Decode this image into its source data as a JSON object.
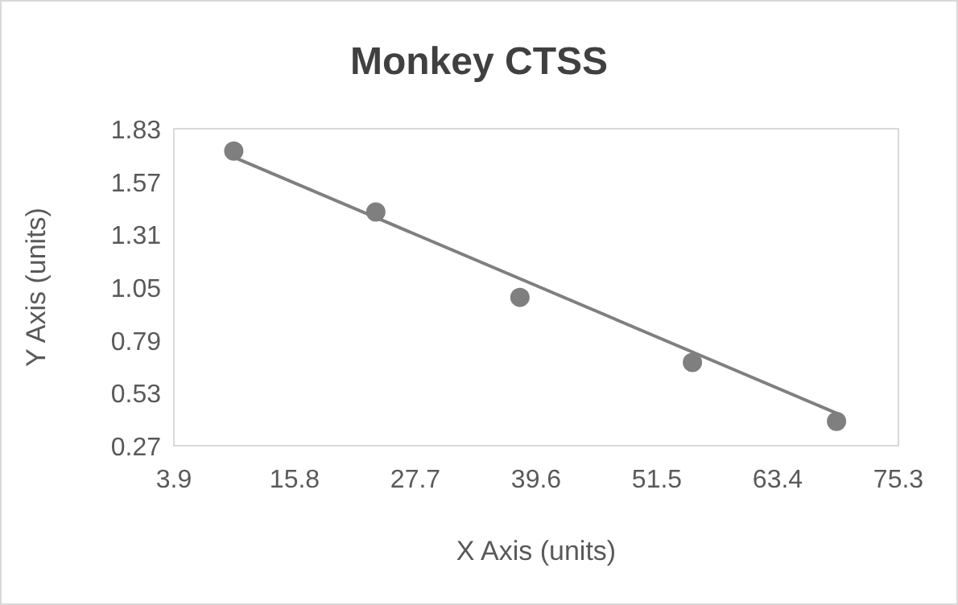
{
  "chart_data": {
    "type": "scatter",
    "title": "Monkey CTSS",
    "xlabel": "X Axis (units)",
    "ylabel": "Y Axis (units)",
    "xlim": [
      3.9,
      75.3
    ],
    "xticks": [
      3.9,
      15.8,
      27.7,
      39.6,
      51.5,
      63.4,
      75.3
    ],
    "ylim": [
      0.27,
      1.83
    ],
    "yticks": [
      0.27,
      0.53,
      0.79,
      1.05,
      1.31,
      1.57,
      1.83
    ],
    "grid": false,
    "marker": "circle",
    "series": [
      {
        "color": "#7f7f7f",
        "x": [
          9.8,
          23.8,
          38.0,
          55.0,
          69.2
        ],
        "values": [
          1.72,
          1.42,
          1.0,
          0.68,
          0.39
        ]
      },
      {
        "type": "line",
        "color": "#7f7f7f",
        "line_style": "solid",
        "marker": "none",
        "x": [
          9.8,
          69.2
        ],
        "values": [
          1.69,
          0.43
        ]
      }
    ]
  }
}
